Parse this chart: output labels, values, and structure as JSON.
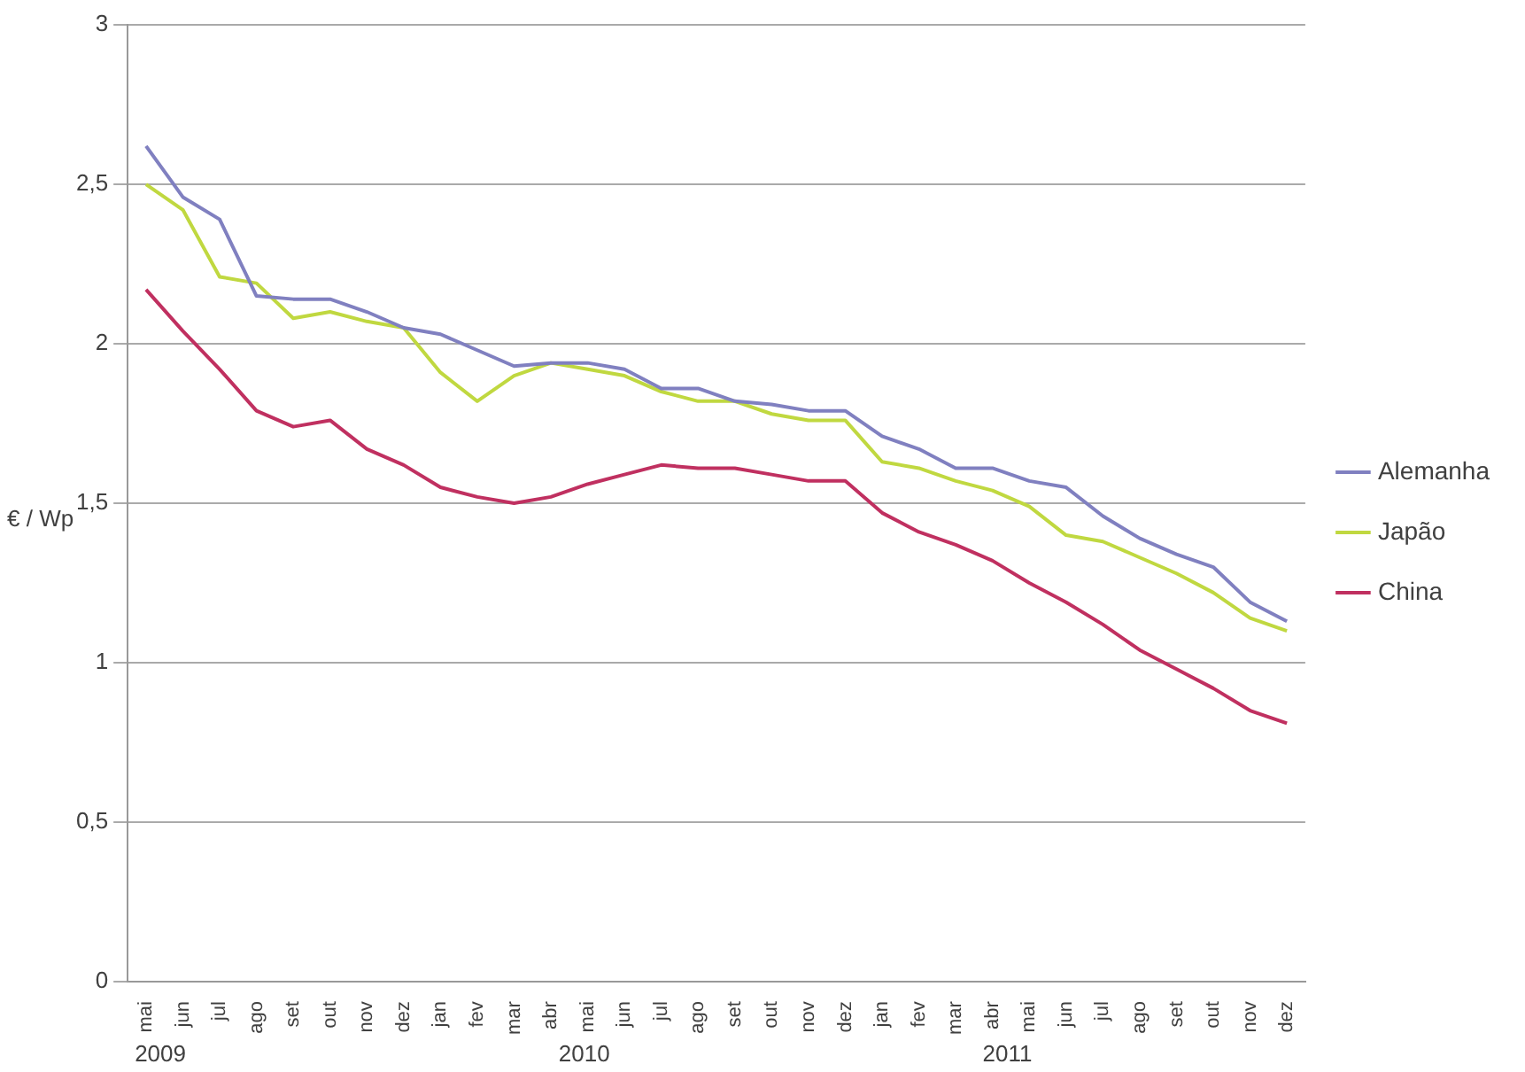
{
  "chart_data": {
    "type": "line",
    "ylabel": "€ / Wp",
    "categories": [
      "mai",
      "jun",
      "jul",
      "ago",
      "set",
      "out",
      "nov",
      "dez",
      "jan",
      "fev",
      "mar",
      "abr",
      "mai",
      "jun",
      "jul",
      "ago",
      "set",
      "out",
      "nov",
      "dez",
      "jan",
      "fev",
      "mar",
      "abr",
      "mai",
      "jun",
      "jul",
      "ago",
      "set",
      "out",
      "nov",
      "dez"
    ],
    "series": [
      {
        "name": "Alemanha",
        "color": "#8080c0",
        "values": [
          2.62,
          2.46,
          2.39,
          2.15,
          2.14,
          2.14,
          2.1,
          2.05,
          2.03,
          1.98,
          1.93,
          1.94,
          1.94,
          1.92,
          1.86,
          1.86,
          1.82,
          1.81,
          1.79,
          1.79,
          1.71,
          1.67,
          1.61,
          1.61,
          1.57,
          1.55,
          1.46,
          1.39,
          1.34,
          1.3,
          1.19,
          1.13
        ]
      },
      {
        "name": "Japão",
        "color": "#c0d840",
        "values": [
          2.5,
          2.42,
          2.21,
          2.19,
          2.08,
          2.1,
          2.07,
          2.05,
          1.91,
          1.82,
          1.9,
          1.94,
          1.92,
          1.9,
          1.85,
          1.82,
          1.82,
          1.78,
          1.76,
          1.76,
          1.63,
          1.61,
          1.57,
          1.54,
          1.49,
          1.4,
          1.38,
          1.33,
          1.28,
          1.22,
          1.14,
          1.1
        ]
      },
      {
        "name": "China",
        "color": "#c03060",
        "values": [
          2.17,
          2.04,
          1.92,
          1.79,
          1.74,
          1.76,
          1.67,
          1.62,
          1.55,
          1.52,
          1.5,
          1.52,
          1.56,
          1.59,
          1.62,
          1.61,
          1.61,
          1.59,
          1.57,
          1.57,
          1.47,
          1.41,
          1.37,
          1.32,
          1.25,
          1.19,
          1.12,
          1.04,
          0.98,
          0.92,
          0.85,
          0.81
        ]
      }
    ],
    "ylim": [
      0,
      3
    ],
    "yticks": [
      0,
      {
        "value": 0.5,
        "label": "0,5"
      },
      1,
      {
        "value": 1.5,
        "label": "1,5"
      },
      2,
      {
        "value": 2.5,
        "label": "2,5"
      },
      3
    ],
    "annotations": [
      "2009",
      "2010",
      "2011"
    ],
    "grid": "y",
    "legend": "right",
    "marker": "none",
    "line_style": "solid"
  }
}
